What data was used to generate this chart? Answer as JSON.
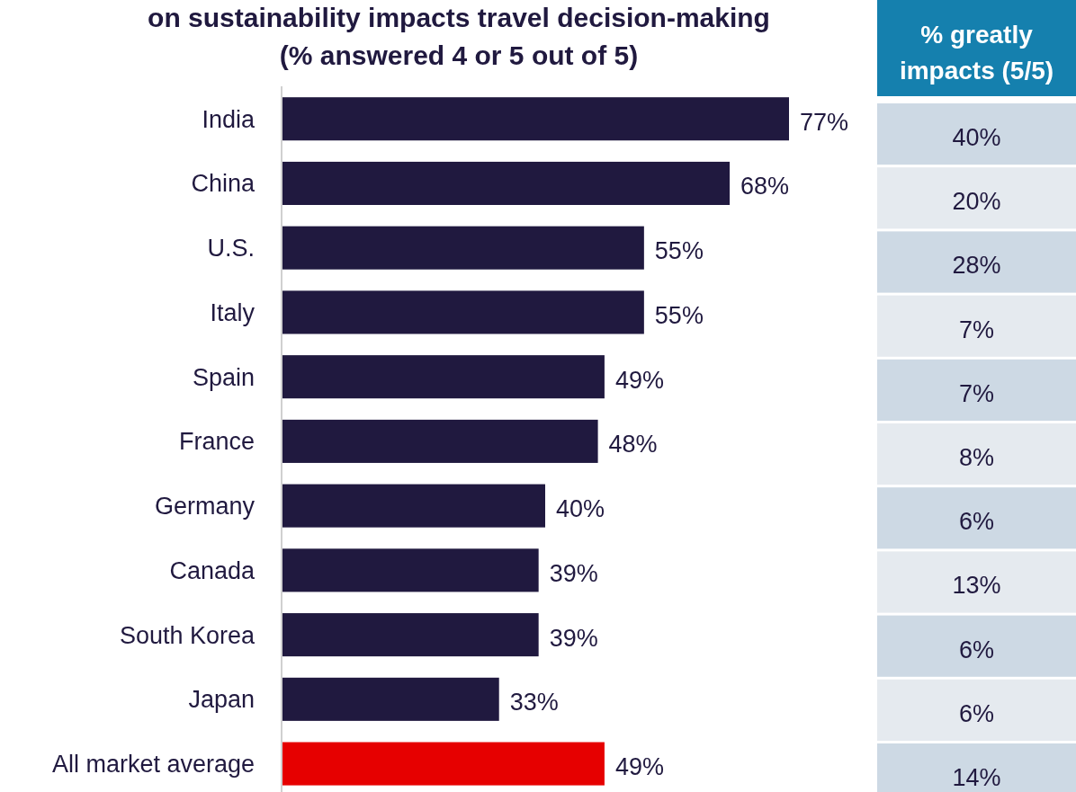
{
  "chart_data": [
    {
      "type": "bar",
      "orientation": "horizontal",
      "title": "on sustainability impacts travel decision-making\n(% answered 4 or 5 out of 5)",
      "categories": [
        "India",
        "China",
        "U.S.",
        "Italy",
        "Spain",
        "France",
        "Germany",
        "Canada",
        "South Korea",
        "Japan",
        "All market average"
      ],
      "values": [
        77,
        68,
        55,
        55,
        49,
        48,
        40,
        39,
        39,
        33,
        49
      ],
      "value_labels": [
        "77%",
        "68%",
        "55%",
        "55%",
        "49%",
        "48%",
        "40%",
        "39%",
        "39%",
        "33%",
        "49%"
      ],
      "colors": [
        "#20193f",
        "#20193f",
        "#20193f",
        "#20193f",
        "#20193f",
        "#20193f",
        "#20193f",
        "#20193f",
        "#20193f",
        "#20193f",
        "#e60000"
      ]
    },
    {
      "type": "other",
      "title": "% greatly impacts (5/5)",
      "values": [
        40,
        20,
        28,
        7,
        7,
        8,
        6,
        13,
        6,
        6,
        14
      ],
      "value_labels": [
        "40%",
        "20%",
        "28%",
        "7%",
        "7%",
        "8%",
        "6%",
        "13%",
        "6%",
        "6%",
        "14%"
      ],
      "colors": [
        "#cdd9e4",
        "#e5eaef",
        "#cdd9e4",
        "#e5eaef",
        "#cdd9e4",
        "#e5eaef",
        "#cdd9e4",
        "#e5eaef",
        "#cdd9e4",
        "#e5eaef",
        "#cdd9e4"
      ],
      "color": "#1580ae"
    }
  ]
}
